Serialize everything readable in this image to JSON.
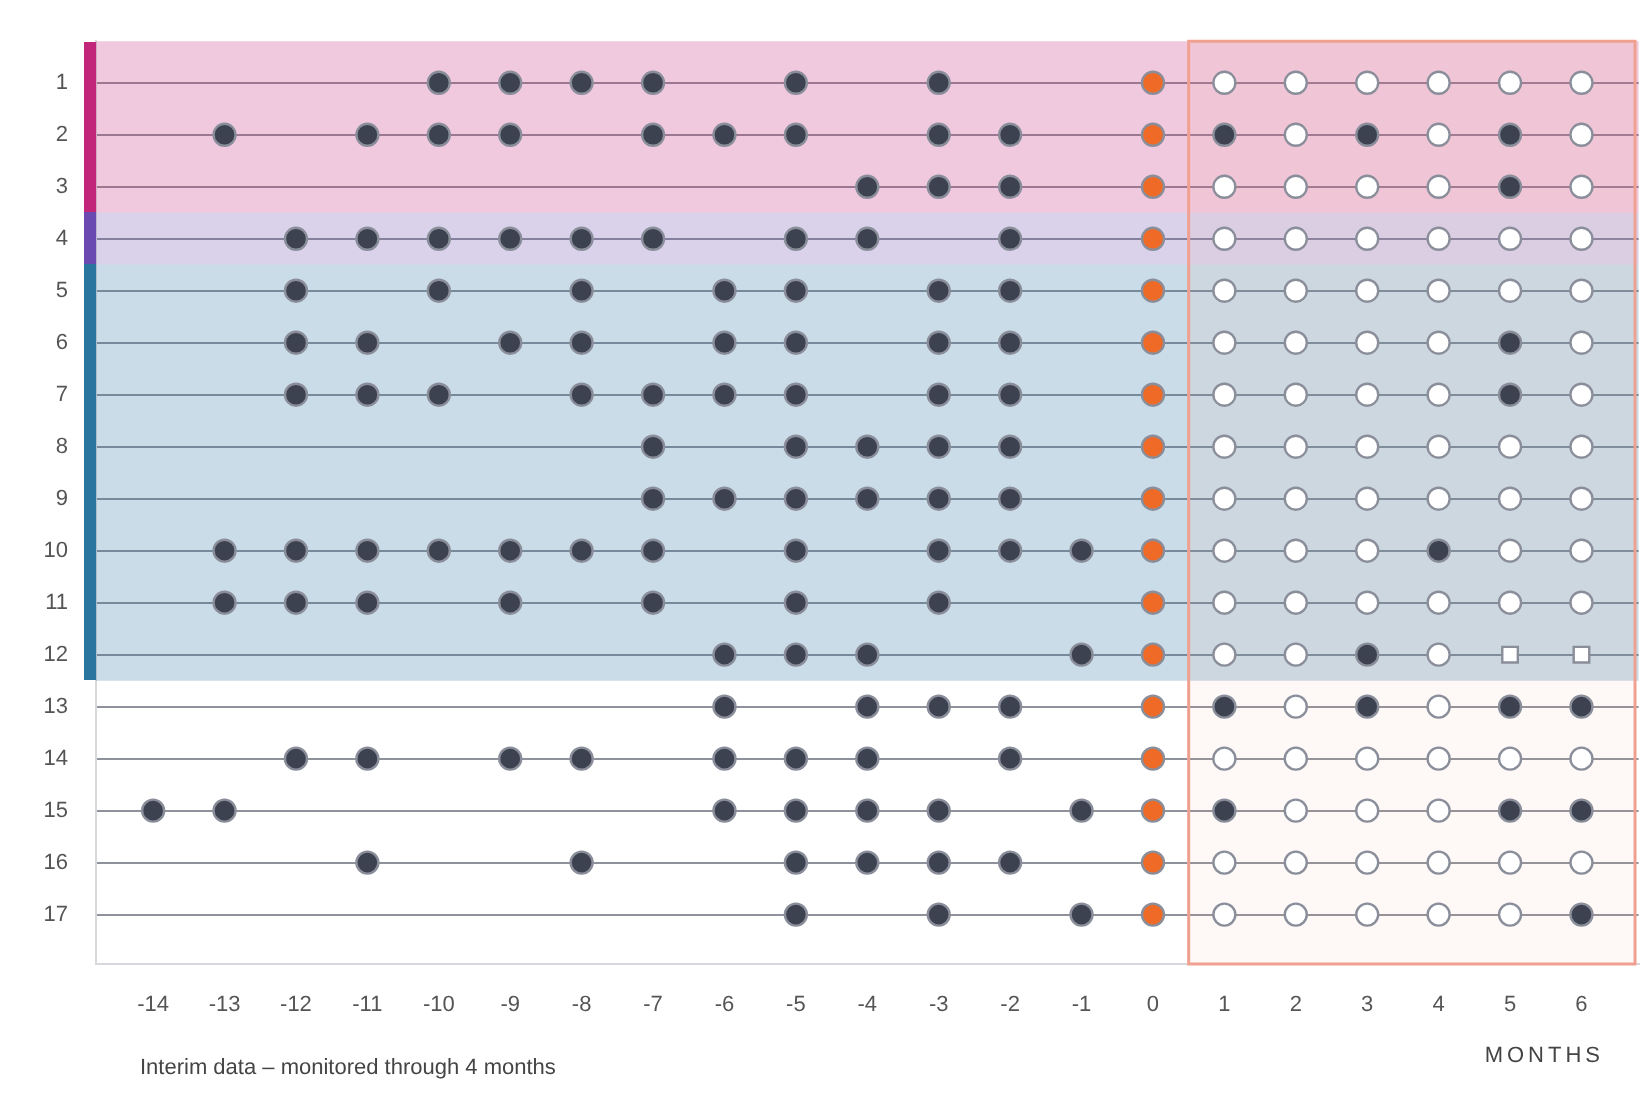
{
  "chart_data": {
    "type": "scatter",
    "xlabel": "MONTHS",
    "annotations": [
      "Interim data – monitored through 4 months"
    ],
    "xlim": [
      -14.8,
      6.8
    ],
    "xticks": [
      -14,
      -13,
      -12,
      -11,
      -10,
      -9,
      -8,
      -7,
      -6,
      -5,
      -4,
      -3,
      -2,
      -1,
      0,
      1,
      2,
      3,
      4,
      5,
      6
    ],
    "ylim": [
      17.95,
      0.2
    ],
    "yticks": [
      1,
      2,
      3,
      4,
      5,
      6,
      7,
      8,
      9,
      10,
      11,
      12,
      13,
      14,
      15,
      16,
      17
    ],
    "grid": "y",
    "legend": false,
    "bands": [
      {
        "axis": "y",
        "from": 0.2,
        "to": 3.5,
        "color": "#c2267a"
      },
      {
        "axis": "y",
        "from": 3.5,
        "to": 4.5,
        "color": "#6a4ab0"
      },
      {
        "axis": "y",
        "from": 4.5,
        "to": 12.5,
        "color": "#2a74a0"
      },
      {
        "axis": "x",
        "from": 0.5,
        "to": 6.75,
        "color": "#f0a090"
      }
    ],
    "series": [
      {
        "marker": "circle",
        "color": "#3d4250",
        "x": [
          -10,
          -9,
          -8,
          -7,
          -5,
          -3,
          -13,
          -11,
          -10,
          -9,
          -7,
          -6,
          -5,
          -3,
          -2,
          1,
          3,
          5,
          -4,
          -3,
          -2,
          5,
          -12,
          -11,
          -10,
          -9,
          -8,
          -7,
          -5,
          -4,
          -2,
          -12,
          -10,
          -8,
          -6,
          -5,
          -3,
          -2,
          -12,
          -11,
          -9,
          -8,
          -6,
          -5,
          -3,
          -2,
          5,
          -12,
          -11,
          -10,
          -8,
          -7,
          -6,
          -5,
          -3,
          -2,
          5,
          -7,
          -5,
          -4,
          -3,
          -2,
          -7,
          -6,
          -5,
          -4,
          -3,
          -2,
          -13,
          -12,
          -11,
          -10,
          -9,
          -8,
          -7,
          -5,
          -3,
          -2,
          -1,
          4,
          -13,
          -12,
          -11,
          -9,
          -7,
          -5,
          -3,
          -6,
          -5,
          -4,
          -1,
          3,
          -6,
          -4,
          -3,
          -2,
          1,
          3,
          5,
          6,
          -12,
          -11,
          -9,
          -8,
          -6,
          -5,
          -4,
          -2,
          -14,
          -13,
          -6,
          -5,
          -4,
          -3,
          -1,
          1,
          5,
          6,
          -11,
          -8,
          -5,
          -4,
          -3,
          -2,
          -5,
          -3,
          -1,
          6
        ],
        "values": [
          1,
          1,
          1,
          1,
          1,
          1,
          2,
          2,
          2,
          2,
          2,
          2,
          2,
          2,
          2,
          2,
          2,
          2,
          3,
          3,
          3,
          3,
          4,
          4,
          4,
          4,
          4,
          4,
          4,
          4,
          4,
          5,
          5,
          5,
          5,
          5,
          5,
          5,
          6,
          6,
          6,
          6,
          6,
          6,
          6,
          6,
          6,
          7,
          7,
          7,
          7,
          7,
          7,
          7,
          7,
          7,
          7,
          8,
          8,
          8,
          8,
          8,
          9,
          9,
          9,
          9,
          9,
          9,
          10,
          10,
          10,
          10,
          10,
          10,
          10,
          10,
          10,
          10,
          10,
          10,
          11,
          11,
          11,
          11,
          11,
          11,
          11,
          12,
          12,
          12,
          12,
          12,
          13,
          13,
          13,
          13,
          13,
          13,
          13,
          13,
          14,
          14,
          14,
          14,
          14,
          14,
          14,
          14,
          15,
          15,
          15,
          15,
          15,
          15,
          15,
          15,
          15,
          15,
          16,
          16,
          16,
          16,
          16,
          16,
          17,
          17,
          17,
          17
        ]
      },
      {
        "marker": "circle",
        "color": "#ee6a26",
        "x": [
          0,
          0,
          0,
          0,
          0,
          0,
          0,
          0,
          0,
          0,
          0,
          0,
          0,
          0,
          0,
          0,
          0
        ],
        "values": [
          1,
          2,
          3,
          4,
          5,
          6,
          7,
          8,
          9,
          10,
          11,
          12,
          13,
          14,
          15,
          16,
          17
        ]
      },
      {
        "marker": "circle",
        "color": "#ffffff",
        "x": [
          1,
          2,
          3,
          4,
          5,
          6,
          2,
          4,
          6,
          1,
          2,
          3,
          4,
          6,
          1,
          2,
          3,
          4,
          5,
          6,
          1,
          2,
          3,
          4,
          5,
          6,
          1,
          2,
          3,
          4,
          6,
          1,
          2,
          3,
          4,
          6,
          1,
          2,
          3,
          4,
          5,
          6,
          1,
          2,
          3,
          4,
          5,
          6,
          1,
          2,
          3,
          5,
          6,
          1,
          2,
          3,
          4,
          5,
          6,
          1,
          2,
          4,
          2,
          4,
          1,
          2,
          3,
          4,
          5,
          6,
          2,
          3,
          4,
          1,
          2,
          3,
          4,
          5,
          6,
          1,
          2,
          3,
          4,
          5
        ],
        "values": [
          1,
          1,
          1,
          1,
          1,
          1,
          2,
          2,
          2,
          3,
          3,
          3,
          3,
          3,
          4,
          4,
          4,
          4,
          4,
          4,
          5,
          5,
          5,
          5,
          5,
          5,
          6,
          6,
          6,
          6,
          6,
          7,
          7,
          7,
          7,
          7,
          8,
          8,
          8,
          8,
          8,
          8,
          9,
          9,
          9,
          9,
          9,
          9,
          10,
          10,
          10,
          10,
          10,
          11,
          11,
          11,
          11,
          11,
          11,
          12,
          12,
          12,
          13,
          13,
          14,
          14,
          14,
          14,
          14,
          14,
          15,
          15,
          15,
          16,
          16,
          16,
          16,
          16,
          16,
          17,
          17,
          17,
          17,
          17
        ]
      },
      {
        "marker": "square",
        "color": "#ffffff",
        "x": [
          5,
          6
        ],
        "values": [
          12,
          12
        ]
      }
    ]
  }
}
